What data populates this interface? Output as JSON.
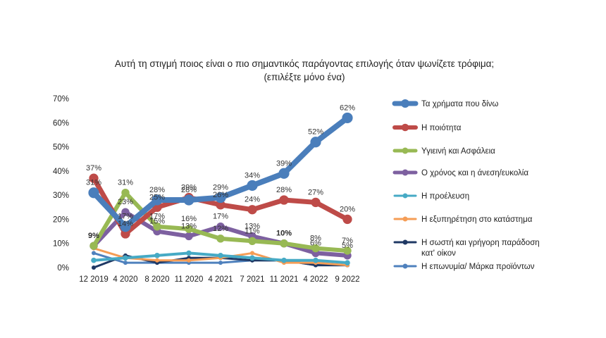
{
  "chart_data": {
    "type": "line",
    "title": "Αυτή τη στιγμή ποιος είναι ο πιο σημαντικός παράγοντας επιλογής όταν ψωνίζετε τρόφιμα;",
    "subtitle": "(επιλέξτε μόνο ένα)",
    "xlabel": "",
    "ylabel": "",
    "ylim": [
      0,
      70
    ],
    "y_ticks": [
      "0%",
      "10%",
      "20%",
      "30%",
      "40%",
      "50%",
      "60%",
      "70%"
    ],
    "categories": [
      "12 2019",
      "4 2020",
      "8 2020",
      "11 2020",
      "4 2021",
      "7 2021",
      "11 2021",
      "4 2022",
      "9 2022"
    ],
    "grid": false,
    "legend_position": "right",
    "series": [
      {
        "name": "Τα χρήματα που δίνω",
        "color": "#4A7EBB",
        "width": 8,
        "values": [
          31,
          17,
          28,
          28,
          29,
          34,
          39,
          52,
          62
        ],
        "labels": [
          "31%",
          "17%",
          "28%",
          "28%",
          "29%",
          "34%",
          "39%",
          "52%",
          "62%"
        ]
      },
      {
        "name": "Η ποιότητα",
        "color": "#BE4B48",
        "width": 7,
        "values": [
          37,
          14,
          25,
          29,
          26,
          24,
          28,
          27,
          20
        ],
        "labels": [
          "37%",
          "14%",
          "25%",
          "29%",
          "26%",
          "24%",
          "28%",
          "27%",
          "20%"
        ]
      },
      {
        "name": "Υγιεινή και Ασφάλεια",
        "color": "#98B954",
        "width": 6,
        "values": [
          9,
          31,
          17,
          16,
          12,
          11,
          10,
          8,
          7
        ],
        "labels": [
          "9%",
          "31%",
          "17%",
          "16%",
          "12%",
          "11%",
          "10%",
          "8%",
          "7%"
        ]
      },
      {
        "name": "Ο χρόνος και η άνεση/ευκολία",
        "color": "#7D60A0",
        "width": 6,
        "values": [
          9,
          23,
          15,
          13,
          17,
          13,
          10,
          6,
          5
        ],
        "labels": [
          "9%",
          "23%",
          "15%",
          "13%",
          "17%",
          "13%",
          "10%",
          "6%",
          "5%"
        ]
      },
      {
        "name": "Η προέλευση",
        "color": "#46AAC5",
        "width": 4,
        "values": [
          3,
          4,
          5,
          6,
          5,
          4,
          3,
          3,
          2
        ],
        "labels": []
      },
      {
        "name": "Η εξυπηρέτηση στο κατάστημα",
        "color": "#F59D56",
        "width": 3,
        "values": [
          8,
          4,
          3,
          3,
          4,
          6,
          2,
          2,
          1
        ],
        "labels": []
      },
      {
        "name": "Η σωστή και γρήγορη παράδοση καt' οίκον",
        "color": "#1F3864",
        "width": 3,
        "values": [
          0,
          5,
          2,
          4,
          4,
          3,
          3,
          1,
          1
        ],
        "labels": []
      },
      {
        "name": "Η επωνυμία/ Μάρκα προϊόντων",
        "color": "#4F81BD",
        "width": 3,
        "values": [
          6,
          2,
          2,
          2,
          2,
          3,
          3,
          1,
          1
        ],
        "labels": []
      }
    ],
    "legend_labels": [
      [
        "Τα χρήματα που δίνω"
      ],
      [
        "Η ποιότητα"
      ],
      [
        "Υγιεινή και Ασφάλεια"
      ],
      [
        "Ο χρόνος και η άνεση/ευκολία"
      ],
      [
        "Η προέλευση"
      ],
      [
        "Η εξυπηρέτηση στο κατάστημα"
      ],
      [
        "Η σωστή και γρήγορη παράδοση",
        "κατ' οίκον"
      ],
      [
        "Η επωνυμία/ Μάρκα προϊόντων"
      ]
    ]
  }
}
